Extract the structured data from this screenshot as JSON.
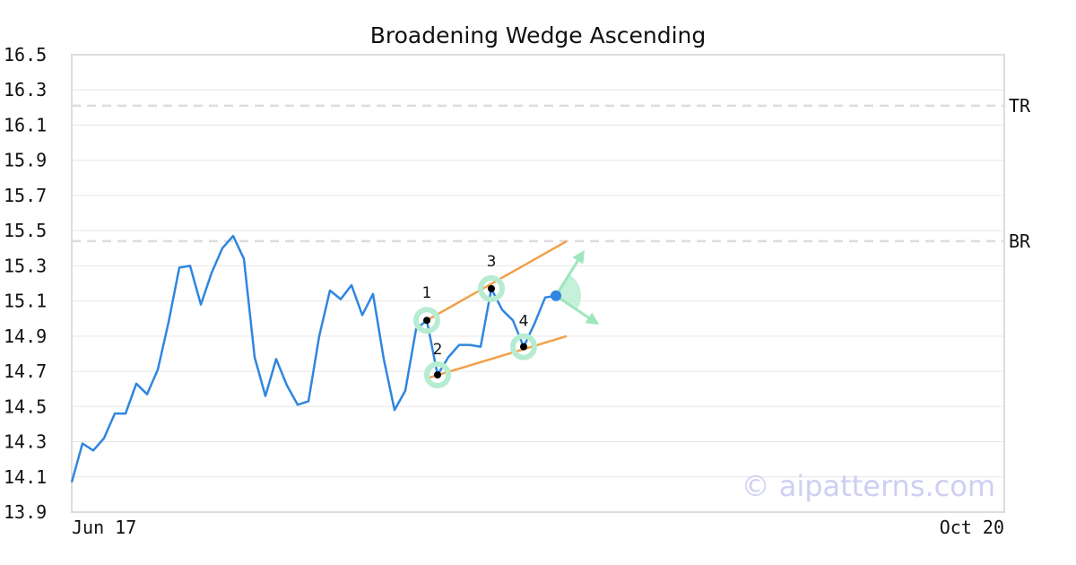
{
  "chart_data": {
    "type": "line",
    "title": "Broadening Wedge Ascending",
    "xlabel": "",
    "ylabel": "",
    "x_tick_labels": [
      "Jun 17",
      "Oct 20"
    ],
    "y_ticks": [
      "13.9",
      "14.1",
      "14.3",
      "14.5",
      "14.7",
      "14.9",
      "15.1",
      "15.3",
      "15.5",
      "15.7",
      "15.9",
      "16.1",
      "16.3",
      "16.5"
    ],
    "ylim": [
      13.9,
      16.5
    ],
    "grid": "horizontal",
    "line_color": "#2f86e0",
    "trendline_color": "#f2a04a",
    "marker_color": "#b6ecd0",
    "series": [
      {
        "values": [
          14.07,
          14.29,
          14.25,
          14.32,
          14.46,
          14.46,
          14.63,
          14.57,
          14.71,
          14.98,
          15.29,
          15.3,
          15.08,
          15.26,
          15.4,
          15.47,
          15.34,
          14.78,
          14.56,
          14.77,
          14.62,
          14.51,
          14.53,
          14.9,
          15.16,
          15.11,
          15.19,
          15.02,
          15.14,
          14.77,
          14.48,
          14.59,
          14.94,
          14.99,
          14.68,
          14.78,
          14.85,
          14.85,
          14.84,
          15.17,
          15.05,
          14.99,
          14.84,
          14.97,
          15.12,
          15.13
        ]
      }
    ],
    "pattern_points": [
      {
        "label": "1",
        "index": 33,
        "value": 14.99
      },
      {
        "label": "2",
        "index": 34,
        "value": 14.68
      },
      {
        "label": "3",
        "index": 39,
        "value": 15.17
      },
      {
        "label": "4",
        "index": 42,
        "value": 14.84
      }
    ],
    "current_point": {
      "index": 45,
      "value": 15.13
    },
    "trendlines": [
      {
        "from": {
          "index": 33,
          "value": 14.99
        },
        "to": {
          "index": 46,
          "value": 15.44
        }
      },
      {
        "from": {
          "index": 33,
          "value": 14.66
        },
        "to": {
          "index": 46,
          "value": 14.9
        }
      }
    ],
    "levels": [
      {
        "label": "TR",
        "value": 16.21
      },
      {
        "label": "BR",
        "value": 15.44
      }
    ],
    "watermark": "© aipatterns.com"
  }
}
